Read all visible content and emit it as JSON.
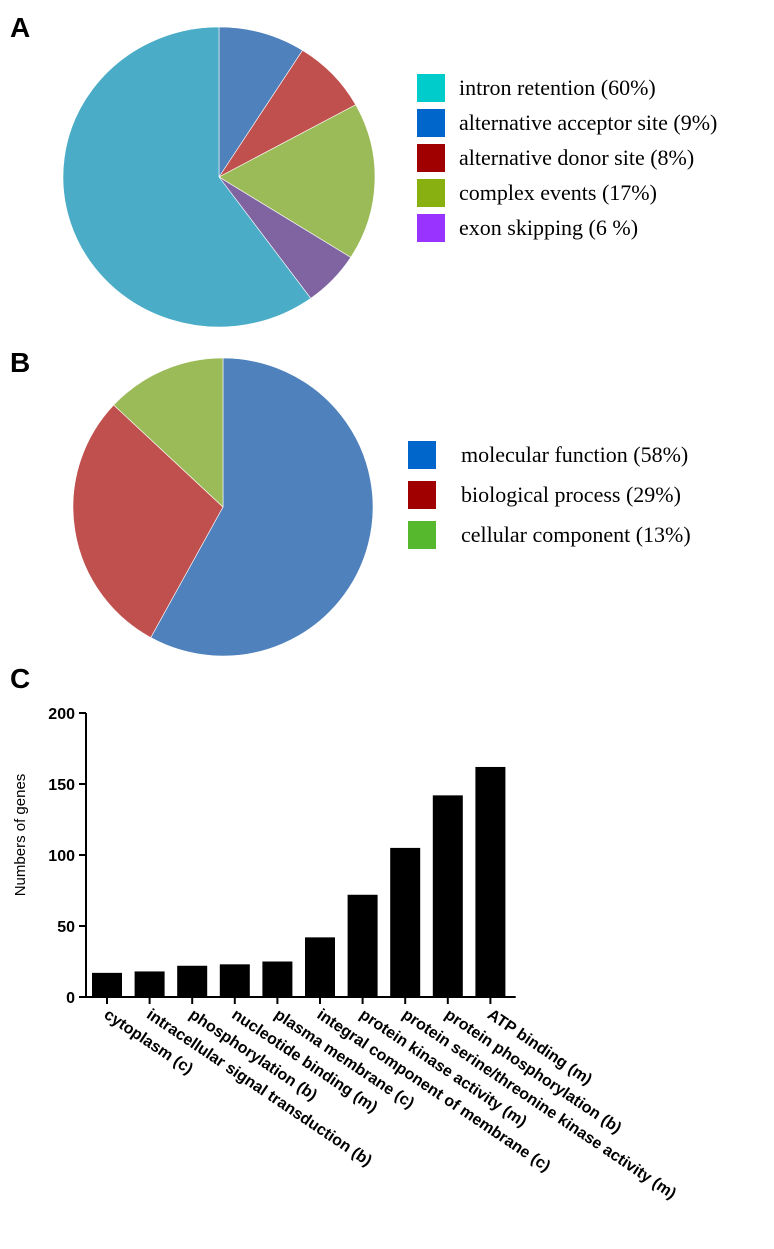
{
  "chart_data": [
    {
      "panel": "A",
      "type": "pie",
      "legend": [
        {
          "label": "intron retention (60%)",
          "value": 60,
          "legend_color": "#00cccc",
          "slice_color": "#4aacc6"
        },
        {
          "label": "alternative acceptor site (9%)",
          "value": 9,
          "legend_color": "#0066cc",
          "slice_color": "#4f81bd"
        },
        {
          "label": "alternative donor site (8%)",
          "value": 8,
          "legend_color": "#a00000",
          "slice_color": "#c0504d"
        },
        {
          "label": "complex events (17%)",
          "value": 17,
          "legend_color": "#88b010",
          "slice_color": "#9bbb59"
        },
        {
          "label": "exon skipping (6 %)",
          "value": 6,
          "legend_color": "#9933ff",
          "slice_color": "#8064a2"
        }
      ],
      "slice_order": [
        1,
        2,
        3,
        4,
        0
      ],
      "legend_placement": "right"
    },
    {
      "panel": "B",
      "type": "pie",
      "legend": [
        {
          "label": "molecular function (58%)",
          "value": 58,
          "legend_color": "#0066cc",
          "slice_color": "#4f81bd"
        },
        {
          "label": "biological process (29%)",
          "value": 29,
          "legend_color": "#a00000",
          "slice_color": "#c0504d"
        },
        {
          "label": "cellular component (13%)",
          "value": 13,
          "legend_color": "#55b82d",
          "slice_color": "#9bbb59"
        }
      ],
      "slice_order": [
        0,
        1,
        2
      ],
      "legend_placement": "right"
    },
    {
      "panel": "C",
      "type": "bar",
      "ylabel": "Numbers of genes",
      "ylim": [
        0,
        200
      ],
      "yticks": [
        0,
        50,
        100,
        150,
        200
      ],
      "bar_color": "#000000",
      "categories": [
        "cytoplasm (c)",
        "intracellular signal transduction (b)",
        "phosphorylation (b)",
        "nucleotide binding (m)",
        "plasma membrane (c)",
        "integral component of membrane (c)",
        "protein kinase activity (m)",
        "protein serine/threonine kinase activity (m)",
        "protein phosphorylation (b)",
        "ATP binding (m)"
      ],
      "values": [
        17,
        18,
        22,
        23,
        25,
        42,
        72,
        105,
        142,
        162
      ]
    }
  ]
}
